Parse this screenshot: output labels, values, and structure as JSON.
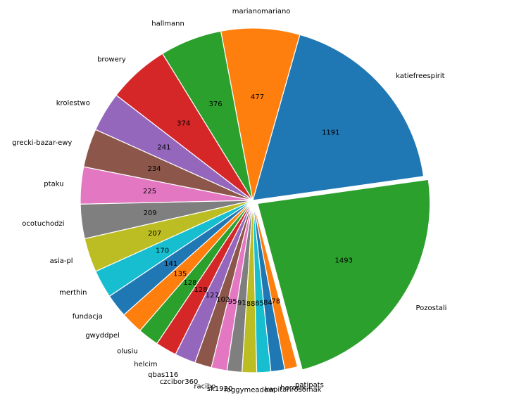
{
  "chart_data": {
    "type": "pie",
    "start_angle_deg": 8,
    "direction": "counterclockwise",
    "explode_last": true,
    "categories": [
      "katiefreespirit",
      "marianomariano",
      "hallmann",
      "browery",
      "krolestwo",
      "grecki-bazar-ewy",
      "ptaku",
      "ocotuchodzi",
      "asia-pl",
      "merthin",
      "fundacja",
      "gwyddpel",
      "olusiu",
      "helcim",
      "qbas116",
      "czcibor360",
      "racibo",
      "sk1920",
      "foggymeadow",
      "kapitanrosomak",
      "herosik",
      "patipats",
      "Pozostali"
    ],
    "values": [
      1191,
      477,
      376,
      374,
      241,
      234,
      225,
      209,
      207,
      170,
      141,
      135,
      128,
      128,
      127,
      102,
      95,
      91,
      88,
      85,
      84,
      78,
      1493
    ],
    "colors": [
      "#1f77b4",
      "#ff7f0e",
      "#2ca02c",
      "#d62728",
      "#9467bd",
      "#8c564b",
      "#e377c2",
      "#7f7f7f",
      "#bcbd22",
      "#17becf",
      "#1f77b4",
      "#ff7f0e",
      "#2ca02c",
      "#d62728",
      "#9467bd",
      "#8c564b",
      "#e377c2",
      "#7f7f7f",
      "#bcbd22",
      "#17becf",
      "#1f77b4",
      "#ff7f0e",
      "#2ca02c"
    ]
  }
}
